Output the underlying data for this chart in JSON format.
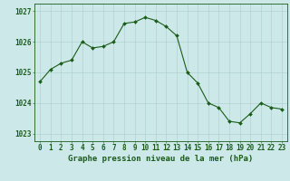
{
  "hours": [
    0,
    1,
    2,
    3,
    4,
    5,
    6,
    7,
    8,
    9,
    10,
    11,
    12,
    13,
    14,
    15,
    16,
    17,
    18,
    19,
    20,
    21,
    22,
    23
  ],
  "pressure": [
    1024.7,
    1025.1,
    1025.3,
    1025.4,
    1026.0,
    1025.8,
    1025.85,
    1026.0,
    1026.6,
    1026.65,
    1026.8,
    1026.7,
    1026.5,
    1026.2,
    1025.0,
    1024.65,
    1024.0,
    1023.85,
    1023.4,
    1023.35,
    1023.65,
    1024.0,
    1023.85,
    1023.8
  ],
  "line_color": "#1a5c1a",
  "marker": "D",
  "marker_size": 2.0,
  "bg_color": "#cde8e8",
  "grid_color": "#aacccc",
  "axis_color": "#1a5c1a",
  "xlabel": "Graphe pression niveau de la mer (hPa)",
  "xlabel_fontsize": 6.5,
  "ylabel_ticks": [
    1023,
    1024,
    1025,
    1026,
    1027
  ],
  "xlim": [
    -0.5,
    23.5
  ],
  "ylim": [
    1022.75,
    1027.25
  ],
  "tick_fontsize": 5.5,
  "title_color": "#1a5c1a",
  "linewidth": 0.8
}
